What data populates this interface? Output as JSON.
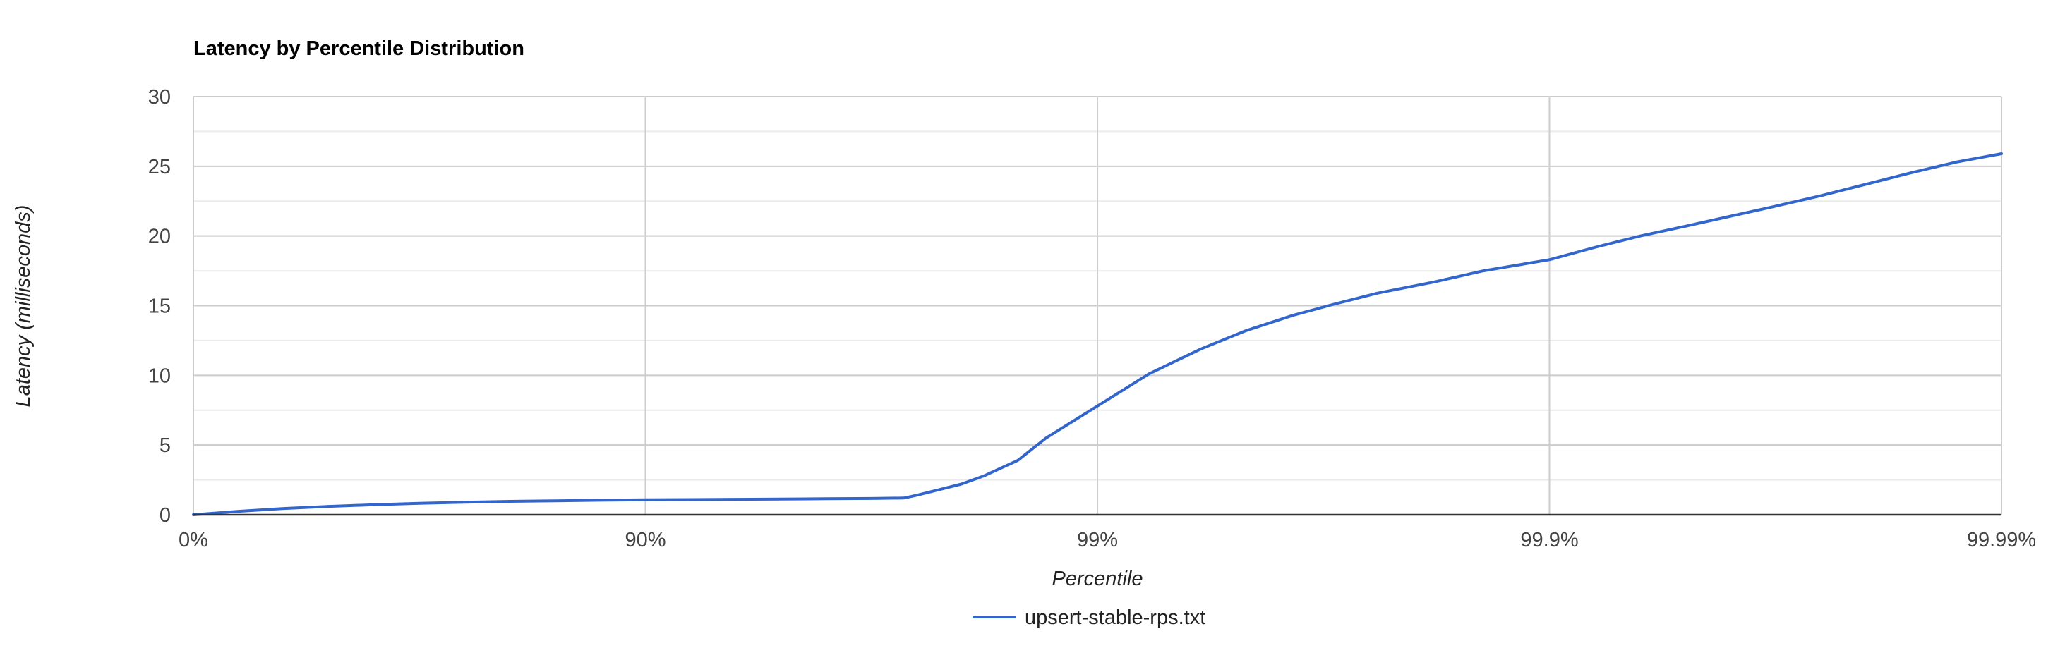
{
  "chart_data": {
    "type": "line",
    "title": "Latency by Percentile Distribution",
    "xlabel": "Percentile",
    "ylabel": "Latency (milliseconds)",
    "x_scale": "log-inverse",
    "x_ticks": [
      "0%",
      "90%",
      "99%",
      "99.9%",
      "99.99%"
    ],
    "y_ticks": [
      "0",
      "5",
      "10",
      "15",
      "20",
      "25",
      "30"
    ],
    "ylim": [
      0,
      30
    ],
    "grid": true,
    "legend_position": "bottom",
    "series": [
      {
        "name": "upsert-stable-rps.txt",
        "color": "#3366cc",
        "points": [
          [
            0,
            0.0
          ],
          [
            20.57,
            0.25
          ],
          [
            36.9,
            0.45
          ],
          [
            49.88,
            0.6
          ],
          [
            60.19,
            0.72
          ],
          [
            68.38,
            0.82
          ],
          [
            74.88,
            0.9
          ],
          [
            80.05,
            0.96
          ],
          [
            84.15,
            1.0
          ],
          [
            87.41,
            1.04
          ],
          [
            90.0,
            1.07
          ],
          [
            92.06,
            1.09
          ],
          [
            93.69,
            1.11
          ],
          [
            94.99,
            1.13
          ],
          [
            96.02,
            1.15
          ],
          [
            96.84,
            1.17
          ],
          [
            97.32,
            1.2
          ],
          [
            97.49,
            1.4
          ],
          [
            97.76,
            1.8
          ],
          [
            98.0,
            2.2
          ],
          [
            98.22,
            2.8
          ],
          [
            98.5,
            3.9
          ],
          [
            98.7,
            5.5
          ],
          [
            99.0,
            7.8
          ],
          [
            99.23,
            10.1
          ],
          [
            99.41,
            11.9
          ],
          [
            99.53,
            13.2
          ],
          [
            99.63,
            14.3
          ],
          [
            99.7,
            15.1
          ],
          [
            99.76,
            15.9
          ],
          [
            99.82,
            16.7
          ],
          [
            99.86,
            17.5
          ],
          [
            99.9,
            18.3
          ],
          [
            99.921,
            19.2
          ],
          [
            99.937,
            20.0
          ],
          [
            99.95,
            20.7
          ],
          [
            99.96,
            21.4
          ],
          [
            99.968,
            22.1
          ],
          [
            99.975,
            22.9
          ],
          [
            99.98,
            23.7
          ],
          [
            99.984,
            24.5
          ],
          [
            99.9874,
            25.3
          ],
          [
            99.99,
            25.9
          ]
        ]
      }
    ]
  }
}
